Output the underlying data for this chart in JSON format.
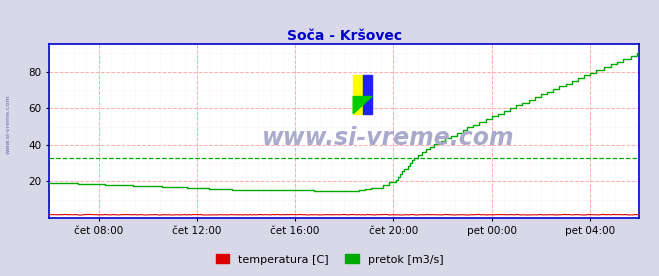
{
  "title": "Soča - Kršovec",
  "title_color": "#0000cc",
  "bg_color": "#d8d8e8",
  "plot_bg_color": "#ffffff",
  "ylim": [
    0,
    95
  ],
  "yticks": [
    20,
    40,
    60,
    80
  ],
  "xlim": [
    0,
    288
  ],
  "xtick_positions": [
    24,
    72,
    120,
    168,
    216,
    264
  ],
  "xtick_labels": [
    "čet 08:00",
    "čet 12:00",
    "čet 16:00",
    "čet 20:00",
    "pet 00:00",
    "pet 04:00"
  ],
  "grid_h_color": "#ffaaaa",
  "grid_v_color": "#ffaaaa",
  "grid_minor_color": "#ffdddd",
  "watermark": "www.si-vreme.com",
  "watermark_color": "#aaaacc",
  "legend_labels": [
    "temperatura [C]",
    "pretok [m3/s]"
  ],
  "legend_colors": [
    "#dd0000",
    "#00aa00"
  ],
  "temp_color": "#dd0000",
  "flow_color": "#00aa00",
  "flow_avg": 33.0,
  "flow_avg_color": "#00aa00",
  "border_color": "#0000cc",
  "side_text_color": "#6666aa",
  "arrow_color": "#dd0000"
}
